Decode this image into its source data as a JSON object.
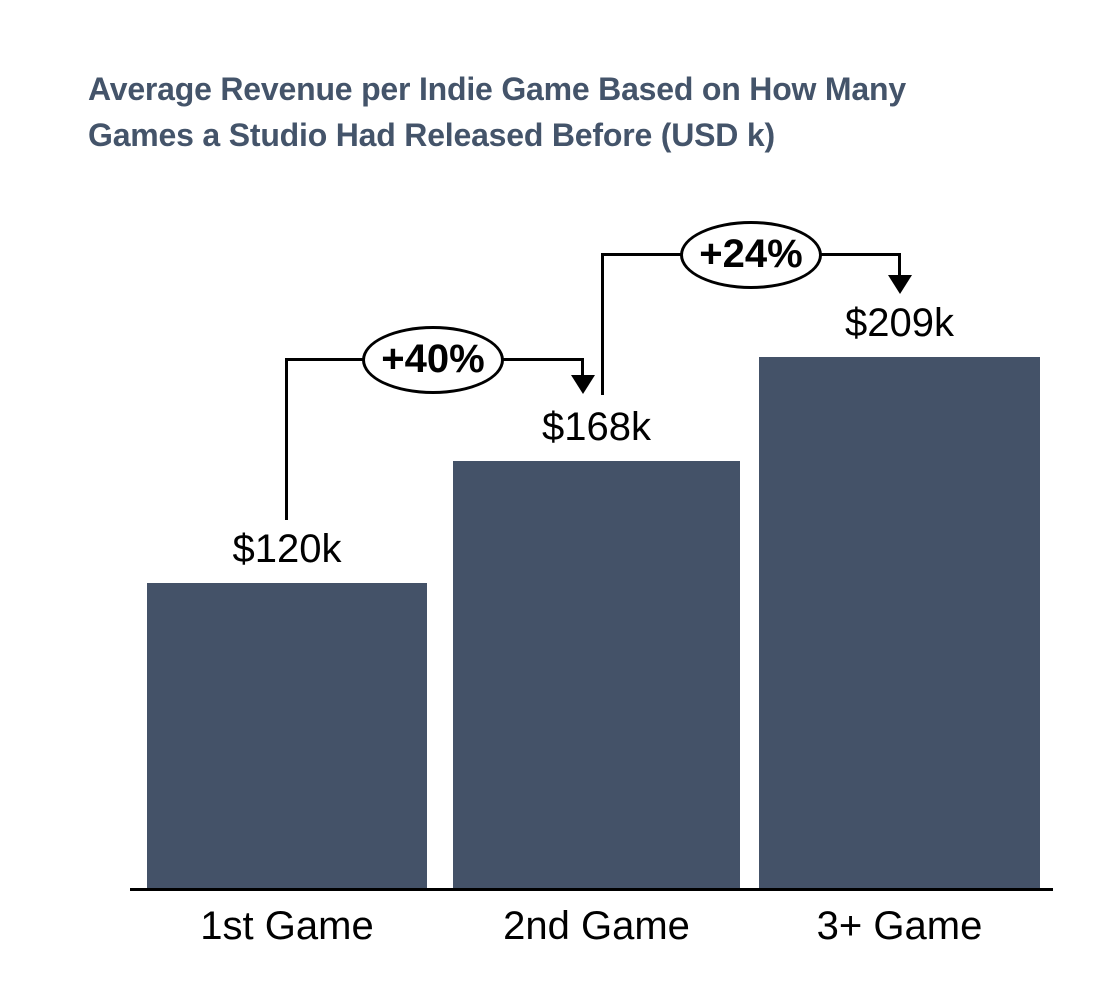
{
  "title_lines": [
    "Average Revenue per Indie Game Based on How Many",
    "Games a Studio Had Released Before (USD k)"
  ],
  "chart_data": {
    "type": "bar",
    "title": "Average Revenue per Indie Game Based on How Many Games a Studio Had Released Before (USD k)",
    "unit": "USD k",
    "categories": [
      "1st Game",
      "2nd Game",
      "3+ Game"
    ],
    "values": [
      120,
      168,
      209
    ],
    "value_labels": [
      "$120k",
      "$168k",
      "$209k"
    ],
    "annotations": [
      {
        "label": "+40%",
        "from": "1st Game",
        "to": "2nd Game"
      },
      {
        "label": "+24%",
        "from": "2nd Game",
        "to": "3+ Game"
      }
    ],
    "ylim": [
      0,
      230
    ],
    "grid": false,
    "legend": false,
    "xlabel": "",
    "ylabel": "",
    "bar_color": "#445268",
    "axis_color": "#000000",
    "title_color": "#44546A",
    "label_color": "#000000"
  }
}
